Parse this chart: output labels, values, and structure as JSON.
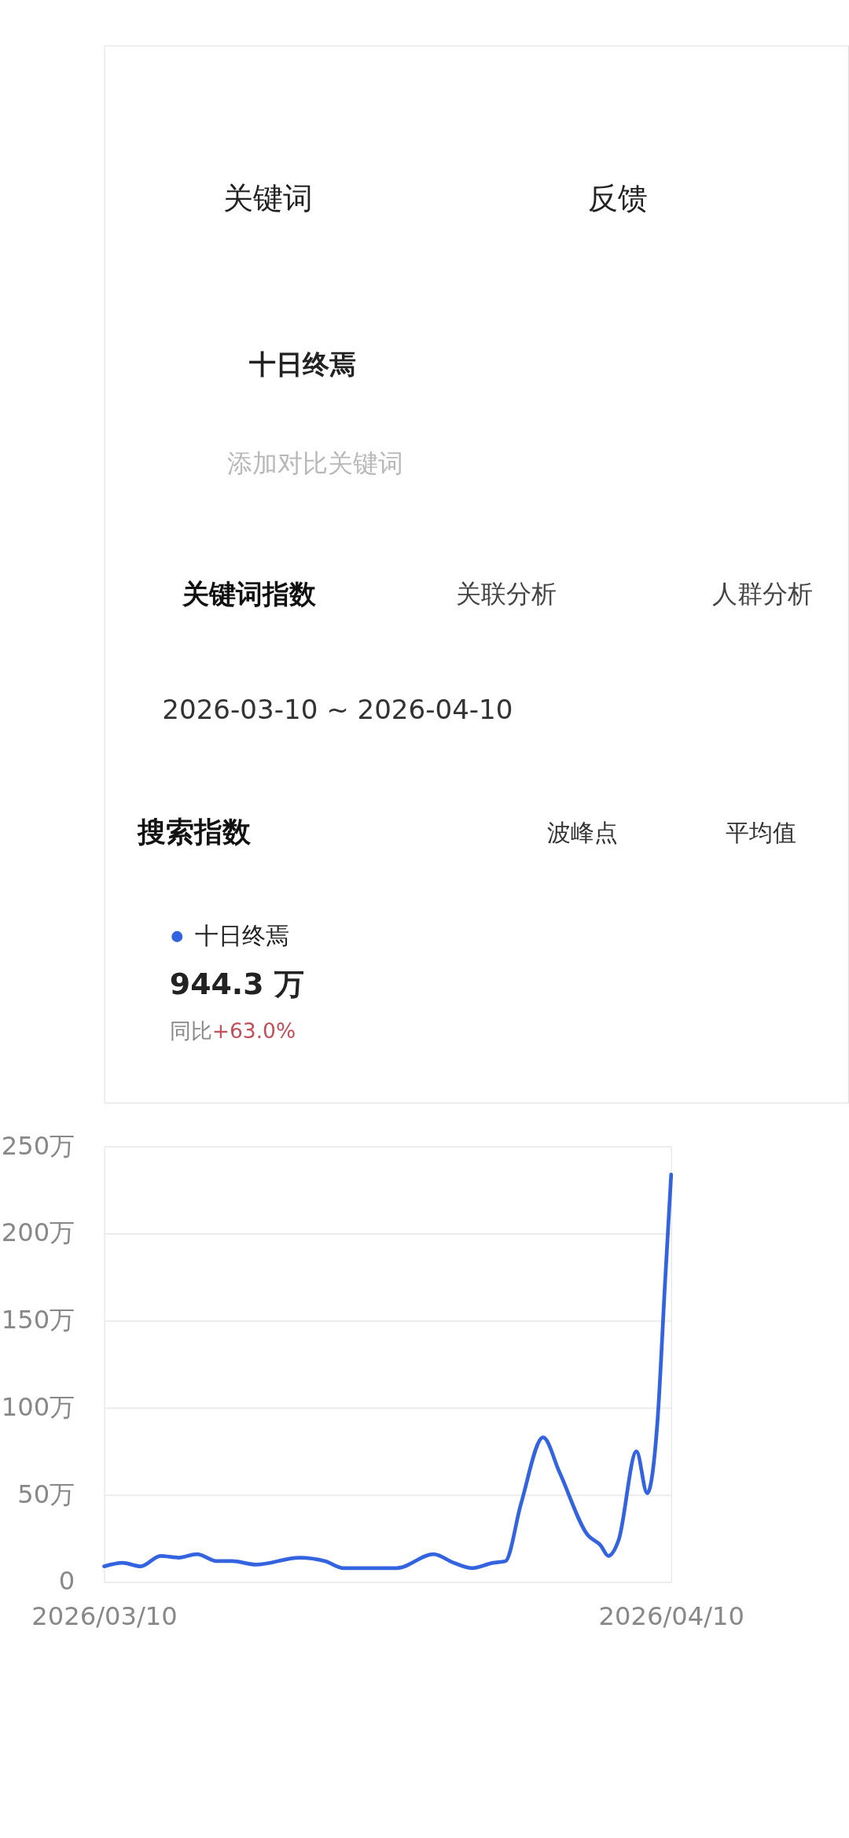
{
  "chart_data": {
    "type": "line",
    "title": "搜索指数",
    "annotations": [
      "关键词",
      "反馈",
      "十日终焉",
      "添加对比关键词",
      "关键词指数",
      "关联分析",
      "人群分析",
      "2026-03-10 ~ 2026-04-10",
      "波峰点",
      "平均值",
      "944.3 万",
      "同比",
      "+63.0%"
    ],
    "x": [
      "2026-03-10T00:00",
      "2026-03-11T00:00",
      "2026-03-12T00:00",
      "2026-03-13T02:00",
      "2026-03-14T02:00",
      "2026-03-15T01:30",
      "2026-03-16T04:30",
      "2026-03-17T00:00",
      "2026-03-18T07:00",
      "2026-03-20T16:30",
      "2026-03-22T02:00",
      "2026-03-23T02:00",
      "2026-03-24T22:00",
      "2026-03-26T00:00",
      "2026-03-28T00:00",
      "2026-03-29T03:00",
      "2026-03-30T03:00",
      "2026-03-31T06:00",
      "2026-03-31T22:30",
      "2026-04-01T19:00",
      "2026-04-03T00:00",
      "2026-04-03T21:30",
      "2026-04-05T10:30",
      "2026-04-06T03:30",
      "2026-04-06T13:30",
      "2026-04-07T03:00",
      "2026-04-08T02:30",
      "2026-04-08T16:30",
      "2026-04-09T06:00",
      "2026-04-09T16:00",
      "2026-04-10T00:00"
    ],
    "series": [
      {
        "name": "十日终焉",
        "color": "#3463e0",
        "values": [
          9,
          11,
          9,
          15,
          14,
          16,
          12,
          12,
          10,
          14,
          12,
          8,
          8,
          8,
          16,
          11,
          8,
          11,
          12,
          45,
          83,
          63,
          27,
          21,
          15,
          24,
          75,
          51,
          92,
          172,
          234
        ]
      }
    ],
    "xlim": [
      "2026-03-10T00:00",
      "2026-04-10T00:00"
    ],
    "xticks": [
      {
        "value": "2026-03-10T00:00",
        "label": "2026/03/10"
      },
      {
        "value": "2026-04-10T00:00",
        "label": "2026/04/10"
      }
    ],
    "ylim": [
      0,
      250
    ],
    "yticks": [
      0,
      {
        "value": 50,
        "label": "50万"
      },
      {
        "value": 100,
        "label": "100万"
      },
      {
        "value": 150,
        "label": "150万"
      },
      {
        "value": 200,
        "label": "200万"
      },
      {
        "value": 250,
        "label": "250万"
      }
    ],
    "grid": "y",
    "legend": "top left",
    "marker": "none",
    "line_style": "solid"
  }
}
